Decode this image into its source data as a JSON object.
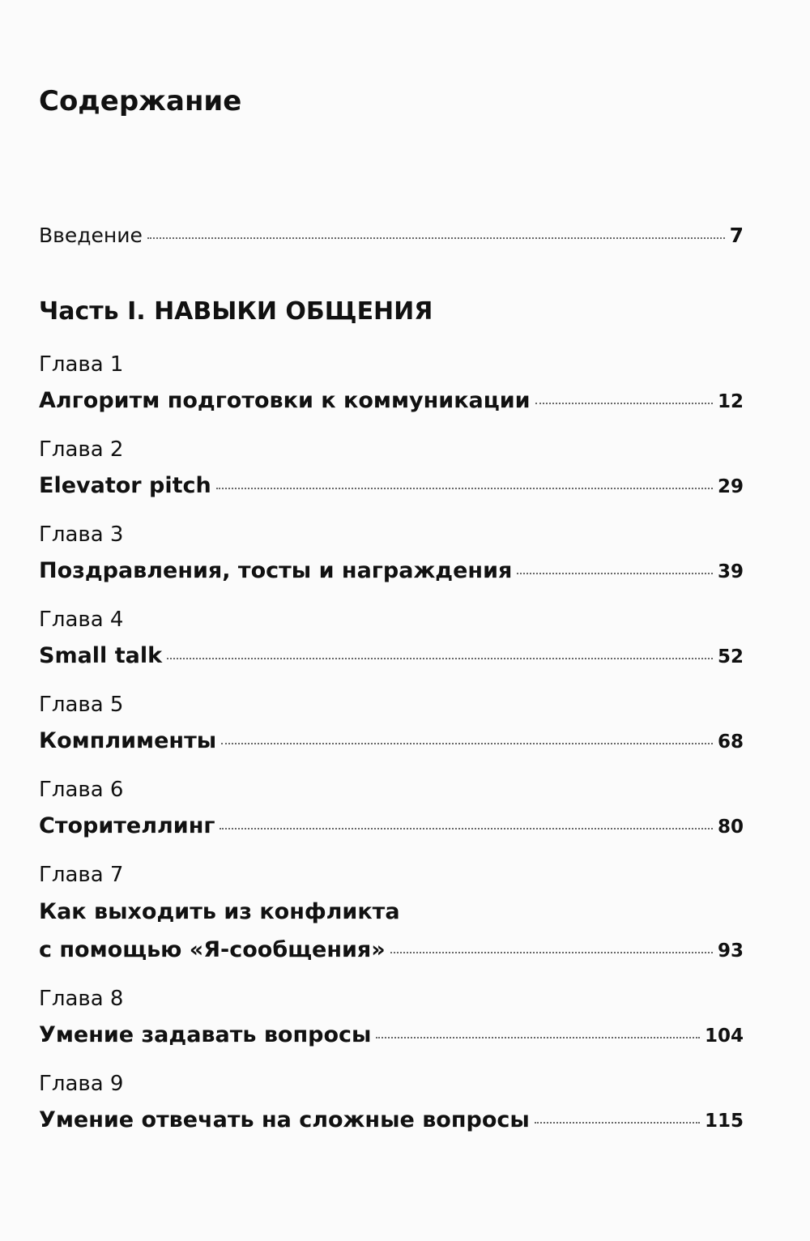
{
  "header": {
    "title": "Содержание"
  },
  "introduction": {
    "title": "Введение",
    "page": 7
  },
  "part": {
    "title": "Часть I. НАВЫКИ ОБЩЕНИЯ"
  },
  "chapters": [
    {
      "label": "Глава 1",
      "lines": [
        "Алгоритм подготовки к коммуникации"
      ],
      "page": 12
    },
    {
      "label": "Глава 2",
      "lines": [
        "Elevator pitch"
      ],
      "page": 29
    },
    {
      "label": "Глава 3",
      "lines": [
        "Поздравления, тосты и награждения"
      ],
      "page": 39
    },
    {
      "label": "Глава 4",
      "lines": [
        "Small talk"
      ],
      "page": 52
    },
    {
      "label": "Глава 5",
      "lines": [
        "Комплименты"
      ],
      "page": 68
    },
    {
      "label": "Глава 6",
      "lines": [
        "Сторителлинг"
      ],
      "page": 80
    },
    {
      "label": "Глава 7",
      "lines": [
        "Как выходить из конфликта",
        "с помощью «Я-сообщения»"
      ],
      "page": 93
    },
    {
      "label": "Глава 8",
      "lines": [
        "Умение задавать вопросы"
      ],
      "page": 104
    },
    {
      "label": "Глава 9",
      "lines": [
        "Умение отвечать на сложные вопросы"
      ],
      "page": 115
    }
  ]
}
